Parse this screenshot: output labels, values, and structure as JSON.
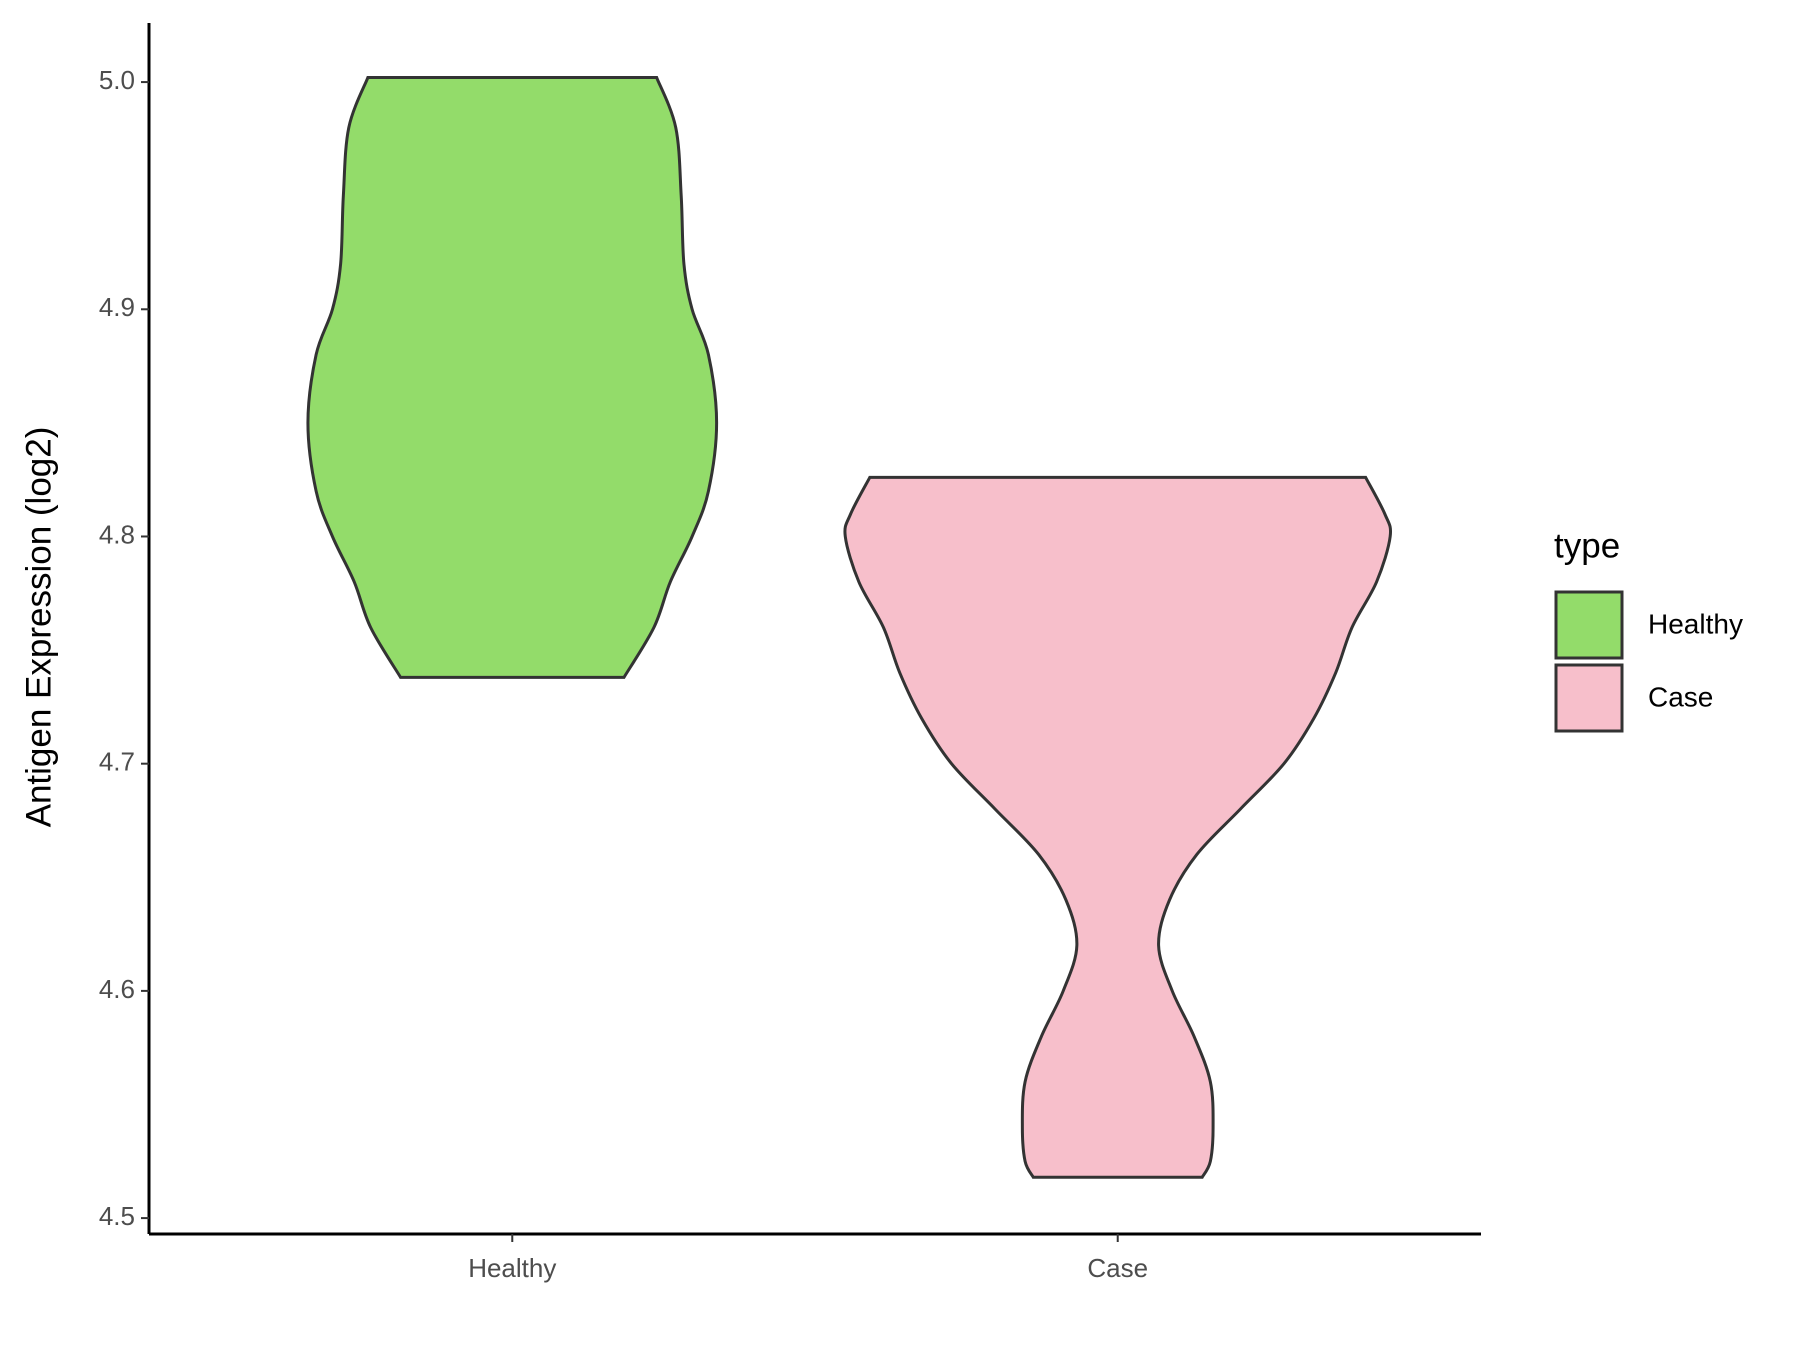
{
  "chart_data": {
    "type": "violin",
    "y_label": "Antigen Expression (log2)",
    "legend_title": "type",
    "legend_position": "right",
    "categories": [
      "Healthy",
      "Case"
    ],
    "ylim": [
      4.493,
      5.026
    ],
    "yticks": [
      4.5,
      4.6,
      4.7,
      4.8,
      4.9,
      {
        "value": 5,
        "label": "5.0"
      }
    ],
    "series": [
      {
        "name": "Healthy",
        "color": "#93dc6a",
        "y": [
          5.002,
          4.98,
          4.95,
          4.92,
          4.9,
          4.88,
          4.85,
          4.82,
          4.8,
          4.78,
          4.76,
          4.738
        ],
        "width": [
          0.53,
          0.6,
          0.62,
          0.63,
          0.66,
          0.72,
          0.75,
          0.72,
          0.66,
          0.58,
          0.52,
          0.41
        ]
      },
      {
        "name": "Case",
        "color": "#f7bfcb",
        "y": [
          4.826,
          4.81,
          4.8,
          4.78,
          4.76,
          4.74,
          4.72,
          4.7,
          4.68,
          4.66,
          4.64,
          4.62,
          4.6,
          4.58,
          4.56,
          4.54,
          4.525,
          4.518
        ],
        "width": [
          0.91,
          0.98,
          1.0,
          0.95,
          0.86,
          0.8,
          0.72,
          0.61,
          0.45,
          0.29,
          0.19,
          0.15,
          0.2,
          0.28,
          0.34,
          0.35,
          0.34,
          0.31
        ]
      }
    ]
  }
}
